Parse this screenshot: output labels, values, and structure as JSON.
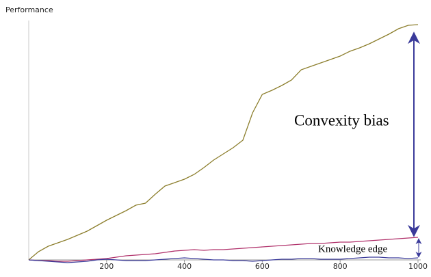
{
  "chart_data": {
    "type": "line",
    "ylabel": "Performance",
    "annotations": [
      "Convexity bias",
      "Knowledge edge"
    ],
    "x": [
      0,
      25,
      50,
      75,
      100,
      125,
      150,
      175,
      200,
      225,
      250,
      275,
      300,
      325,
      350,
      375,
      400,
      425,
      450,
      475,
      500,
      525,
      550,
      575,
      600,
      625,
      650,
      675,
      700,
      725,
      750,
      775,
      800,
      825,
      850,
      875,
      900,
      925,
      950,
      975,
      1000
    ],
    "series": [
      {
        "color": "#8c7e2c",
        "values": [
          0,
          1.2,
          2,
          2.5,
          3,
          3.6,
          4.2,
          5,
          5.8,
          6.5,
          7.2,
          8,
          8.3,
          9.6,
          10.8,
          11.3,
          11.8,
          12.5,
          13.5,
          14.6,
          15.5,
          16.4,
          17.5,
          21.5,
          24.2,
          24.8,
          25.5,
          26.3,
          27.8,
          28.3,
          28.8,
          29.3,
          29.8,
          30.5,
          31,
          31.6,
          32.3,
          33,
          33.8,
          34.3,
          34.4
        ]
      },
      {
        "color": "#b0306a",
        "values": [
          0,
          -0.1,
          -0.1,
          -0.2,
          -0.2,
          -0.1,
          0,
          0.1,
          0.2,
          0.4,
          0.6,
          0.7,
          0.8,
          0.9,
          1.1,
          1.3,
          1.4,
          1.5,
          1.4,
          1.5,
          1.5,
          1.6,
          1.7,
          1.8,
          1.9,
          2.0,
          2.1,
          2.2,
          2.3,
          2.4,
          2.4,
          2.5,
          2.6,
          2.6,
          2.7,
          2.8,
          2.9,
          3.0,
          3.1,
          3.2,
          3.3
        ]
      },
      {
        "color": "#3a3a9a",
        "values": [
          0,
          -0.1,
          -0.2,
          -0.3,
          -0.4,
          -0.3,
          -0.2,
          0,
          0.1,
          0,
          -0.1,
          -0.1,
          -0.1,
          0,
          0.1,
          0.2,
          0.3,
          0.2,
          0.1,
          0,
          0,
          -0.1,
          -0.1,
          -0.2,
          -0.1,
          0,
          0.1,
          0.1,
          0.2,
          0.2,
          0.1,
          0.1,
          0.1,
          0.2,
          0.3,
          0.4,
          0.4,
          0.3,
          0.3,
          0.2,
          0.3
        ]
      }
    ],
    "xlim": [
      0,
      1000
    ],
    "xticks": [
      200,
      400,
      600,
      800,
      1000
    ],
    "ylim": [
      -2,
      36
    ]
  }
}
